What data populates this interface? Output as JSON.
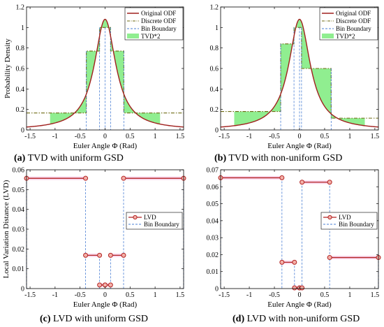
{
  "captions": [
    {
      "letter": "(a)",
      "text": " TVD with uniform GSD"
    },
    {
      "letter": "(b)",
      "text": " TVD with non-uniform GSD"
    },
    {
      "letter": "(c)",
      "text": " LVD with uniform GSD"
    },
    {
      "letter": "(d)",
      "text": " LVD with non-uniform GSD"
    }
  ],
  "colors": {
    "odf": "#a0201e",
    "discrete": "#6e6a12",
    "boundary": "#4a7fd4",
    "tvd_fill": "#90ee90",
    "lvd": "#b22222",
    "lvd_highlight": "#f6c6e6"
  },
  "chart_data": [
    {
      "type": "line",
      "panel": "a",
      "xlabel": "Euler Angle Φ (Rad)",
      "ylabel": "Probability Density",
      "xlim": [
        -1.5708,
        1.5708
      ],
      "ylim": [
        0,
        1.2
      ],
      "xticks": [
        -1.5,
        -1,
        -0.5,
        0,
        0.5,
        1,
        1.5
      ],
      "yticks": [
        0,
        0.2,
        0.4,
        0.6,
        0.8,
        1,
        1.2
      ],
      "grid": false,
      "legend_position": "top-right",
      "legend": [
        "Original ODF",
        "Discrete ODF",
        "Bin Boundary",
        "TVD*2"
      ],
      "odf": {
        "peak": 1.08,
        "width": 0.26
      },
      "bin_edges": [
        -1.5708,
        -0.375,
        -0.11,
        0,
        0.11,
        0.375,
        1.5708
      ],
      "bin_values": [
        0.166,
        0.77,
        1.0,
        1.0,
        0.77,
        0.166
      ],
      "tvd_extent": [
        -1.1,
        1.1
      ]
    },
    {
      "type": "line",
      "panel": "b",
      "xlabel": "Euler Angle Φ (Rad)",
      "ylabel": "",
      "xlim": [
        -1.5708,
        1.5708
      ],
      "ylim": [
        0,
        1.2
      ],
      "xticks": [
        -1.5,
        -1,
        -0.5,
        0,
        0.5,
        1,
        1.5
      ],
      "yticks": [
        0,
        0.2,
        0.4,
        0.6,
        0.8,
        1,
        1.2
      ],
      "grid": false,
      "legend_position": "top-right",
      "legend": [
        "Original ODF",
        "Discrete ODF",
        "Bin Boundary",
        "TVD*2"
      ],
      "odf": {
        "peak": 1.08,
        "width": 0.26
      },
      "bin_edges": [
        -1.5708,
        -0.375,
        -0.11,
        0,
        0.04,
        0.63,
        1.5708
      ],
      "bin_values": [
        0.18,
        0.84,
        1.0,
        1.0,
        0.6,
        0.115
      ],
      "tvd_extent": [
        -1.3,
        1.3
      ]
    },
    {
      "type": "line",
      "panel": "c",
      "xlabel": "Euler Angle Φ (Rad)",
      "ylabel": "Local Variation Distance (LVD)",
      "xlim": [
        -1.5708,
        1.5708
      ],
      "ylim": [
        0,
        0.06
      ],
      "xticks": [
        -1.5,
        -1,
        -0.5,
        0,
        0.5,
        1,
        1.5
      ],
      "yticks": [
        0,
        0.01,
        0.02,
        0.03,
        0.04,
        0.05,
        0.06
      ],
      "ytick_labels": [
        "0",
        "0.01",
        "0.02",
        "0.03",
        "0.04",
        "0.05",
        "0.06"
      ],
      "grid": false,
      "legend_position": "center-right",
      "legend": [
        "LVD",
        "Bin Boundary"
      ],
      "segments": [
        {
          "x": [
            -1.5708,
            -0.39
          ],
          "y": 0.0557
        },
        {
          "x": [
            -0.39,
            -0.11
          ],
          "y": 0.0168
        },
        {
          "x": [
            -0.11,
            0
          ],
          "y": 0.0018
        },
        {
          "x": [
            0,
            0.11
          ],
          "y": 0.0018
        },
        {
          "x": [
            0.11,
            0.37
          ],
          "y": 0.0168
        },
        {
          "x": [
            0.37,
            1.5708
          ],
          "y": 0.0557
        }
      ]
    },
    {
      "type": "line",
      "panel": "d",
      "xlabel": "Euler Angle Φ (Rad)",
      "ylabel": "",
      "xlim": [
        -1.5708,
        1.5708
      ],
      "ylim": [
        0,
        0.07
      ],
      "xticks": [
        -1.5,
        -1,
        -0.5,
        0,
        0.5,
        1,
        1.5
      ],
      "yticks": [
        0,
        0.01,
        0.02,
        0.03,
        0.04,
        0.05,
        0.06,
        0.07
      ],
      "ytick_labels": [
        "0",
        "0.01",
        "0.02",
        "0.03",
        "0.04",
        "0.05",
        "0.06",
        "0.07"
      ],
      "grid": false,
      "legend_position": "center-right",
      "legend": [
        "LVD",
        "Bin Boundary"
      ],
      "segments": [
        {
          "x": [
            -1.5708,
            -0.35
          ],
          "y": 0.0653
        },
        {
          "x": [
            -0.35,
            -0.1
          ],
          "y": 0.0155
        },
        {
          "x": [
            -0.1,
            0
          ],
          "y": 0.0004
        },
        {
          "x": [
            0,
            0.05
          ],
          "y": 0.0004
        },
        {
          "x": [
            0.05,
            0.6
          ],
          "y": 0.0627
        },
        {
          "x": [
            0.6,
            1.5708
          ],
          "y": 0.0183
        }
      ]
    }
  ]
}
